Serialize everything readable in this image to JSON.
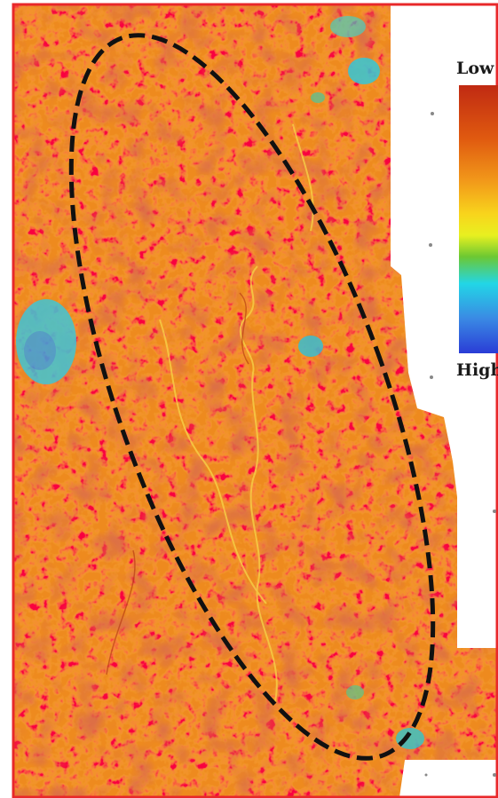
{
  "legend": {
    "low_label": "Low",
    "high_label": "High",
    "colors": [
      "#c02a12",
      "#e05a10",
      "#f29a1a",
      "#f8d41c",
      "#e8f020",
      "#6cc832",
      "#22d6e6",
      "#3a8ae4",
      "#2a3cd6"
    ]
  },
  "palette": {
    "border": "#e8282a",
    "ellipse": "#111111",
    "base_orange": "#ee8a1e"
  }
}
